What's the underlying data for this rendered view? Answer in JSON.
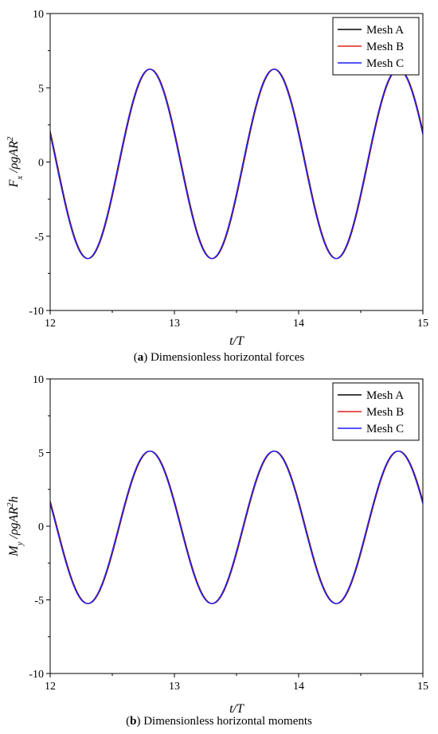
{
  "chart_data": [
    {
      "type": "line",
      "panel_letter": "a",
      "caption": "Dimensionless horizontal forces",
      "xlabel": "t/T",
      "ylabel": "F_x /ρgAR^2",
      "xlim": [
        12,
        15
      ],
      "ylim": [
        -10,
        10
      ],
      "xticks": [
        12,
        13,
        14,
        15
      ],
      "yticks": [
        -10,
        -5,
        0,
        5,
        10
      ],
      "grid": false,
      "legend_position": "top-right",
      "wave": {
        "period": 1.0,
        "max": 6.25,
        "min": -6.5,
        "peak_t": 12.8,
        "trough_t": 12.3
      },
      "series": [
        {
          "name": "Mesh A",
          "color": "#000000",
          "phase_shift": 0.006
        },
        {
          "name": "Mesh B",
          "color": "#e0201b",
          "phase_shift": 0.003
        },
        {
          "name": "Mesh C",
          "color": "#1a1aff",
          "phase_shift": 0.0
        }
      ]
    },
    {
      "type": "line",
      "panel_letter": "b",
      "caption": "Dimensionless horizontal moments",
      "xlabel": "t/T",
      "ylabel": "M_y /ρgAR^2h",
      "xlim": [
        12,
        15
      ],
      "ylim": [
        -10,
        10
      ],
      "xticks": [
        12,
        13,
        14,
        15
      ],
      "yticks": [
        -10,
        -5,
        0,
        5,
        10
      ],
      "grid": false,
      "legend_position": "top-right",
      "wave": {
        "period": 1.0,
        "max": 5.1,
        "min": -5.25,
        "peak_t": 12.8,
        "trough_t": 12.3
      },
      "series": [
        {
          "name": "Mesh A",
          "color": "#000000",
          "phase_shift": 0.006
        },
        {
          "name": "Mesh B",
          "color": "#e0201b",
          "phase_shift": 0.003
        },
        {
          "name": "Mesh C",
          "color": "#1a1aff",
          "phase_shift": 0.0
        }
      ]
    }
  ]
}
